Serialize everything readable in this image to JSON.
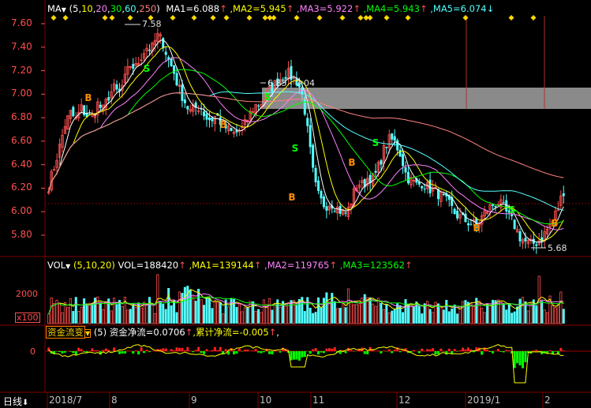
{
  "main_header": {
    "name": "MA",
    "params_prefix": "(",
    "params": [
      "5",
      "10",
      "20",
      "30",
      "60",
      "250"
    ],
    "params_suffix": ")",
    "ma1": "MA1=6.088",
    "ma2": "MA2=5.945",
    "ma3": "MA3=5.922",
    "ma4": "MA4=5.943",
    "ma5": "MA5=6.074",
    "up_arrow": "↑",
    "down_arrow": "↓"
  },
  "vol_header": {
    "name": "VOL",
    "params": "(5,10,20)",
    "vol": "VOL=188420",
    "ma1": "MA1=139144",
    "ma2": "MA2=119765",
    "ma3": "MA3=123562",
    "up_arrow": "↑"
  },
  "fund_header": {
    "name": "资金流变",
    "params": "(5)",
    "net": "资金净流=0.0706",
    "cum": "累计净流=-0.005",
    "up_arrow": "↑",
    "sep": ","
  },
  "price_axis": [
    "7.60",
    "7.40",
    "7.20",
    "7.00",
    "6.80",
    "6.60",
    "6.40",
    "6.20",
    "6.00",
    "5.80"
  ],
  "vol_axis": {
    "tick": "2000",
    "unit": "x100"
  },
  "fund_axis": {
    "tick": "0"
  },
  "annotations": {
    "high": "7.58",
    "low": "5.68",
    "range": "6.85 - 7.04"
  },
  "signals": {
    "buy": "B",
    "sell": "S"
  },
  "bottom_bar": {
    "period": "日线",
    "period_arrow": "⬇"
  },
  "x_axis": [
    "2018/7",
    "8",
    "9",
    "10",
    "11",
    "12",
    "2019/1",
    "2"
  ],
  "colors": {
    "up": "#ff5050",
    "down": "#54ffff",
    "bg": "#000000",
    "grid": "#800000",
    "ma5": "#ffffff",
    "ma10": "#ffff00",
    "ma20": "#ff80ff",
    "ma30": "#00ff00",
    "ma60": "#54ffff",
    "ma250": "#ff8080",
    "diamond": "#ffd700",
    "band": "#909090"
  },
  "chart_data": {
    "type": "candlestick",
    "price_ylim": [
      5.7,
      7.65
    ],
    "x_months": [
      "2018/7",
      "8",
      "9",
      "10",
      "11",
      "12",
      "2019/1",
      "2"
    ],
    "price_path": [
      6.22,
      6.38,
      6.55,
      6.74,
      6.84,
      6.78,
      6.88,
      6.82,
      6.8,
      6.92,
      6.86,
      6.98,
      7.05,
      7.0,
      7.12,
      7.25,
      7.22,
      7.32,
      7.4,
      7.38,
      7.5,
      7.45,
      7.3,
      7.2,
      7.05,
      6.95,
      6.85,
      6.88,
      6.9,
      6.8,
      6.78,
      6.82,
      6.74,
      6.7,
      6.66,
      6.68,
      6.72,
      6.82,
      6.9,
      6.92,
      6.98,
      7.05,
      7.1,
      7.15,
      7.18,
      7.14,
      7.1,
      6.95,
      6.6,
      6.25,
      6.1,
      6.05,
      6.08,
      6.04,
      6.0,
      5.98,
      6.12,
      6.25,
      6.22,
      6.3,
      6.28,
      6.4,
      6.55,
      6.62,
      6.58,
      6.48,
      6.3,
      6.26,
      6.22,
      6.25,
      6.2,
      6.18,
      6.15,
      6.1,
      6.05,
      5.98,
      5.95,
      5.92,
      5.9,
      5.88,
      5.96,
      6.02,
      6.06,
      6.08,
      6.02,
      5.95,
      5.88,
      5.78,
      5.74,
      5.72,
      5.74,
      5.78,
      5.85,
      5.92,
      6.04,
      6.18
    ],
    "ma5_last": 6.088,
    "ma10_last": 5.945,
    "ma20_last": 5.922,
    "ma30_last": 5.943,
    "ma60_last": 6.074,
    "volume": {
      "current": 188420,
      "ma1": 139144,
      "ma2": 119765,
      "ma3": 123562
    },
    "fund_flow": {
      "net": 0.0706,
      "cumulative": -0.005
    }
  }
}
